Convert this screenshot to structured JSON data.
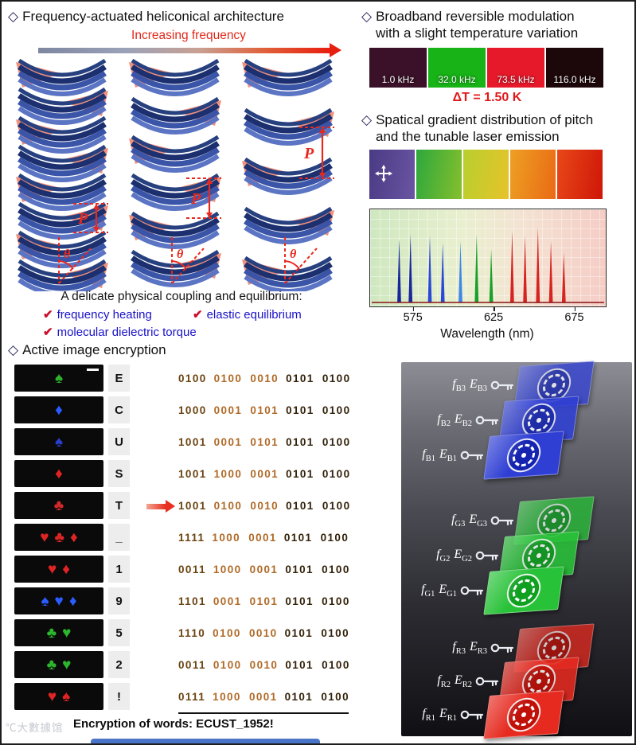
{
  "heliconical": {
    "bullet": "◇",
    "title": "Frequency-actuated heliconical architecture",
    "arrow_label": "Increasing frequency",
    "arrow_colors": [
      "#7e87a0",
      "#e81e10"
    ],
    "pitch_label": "P",
    "theta_label": "θ",
    "annotation_color": "#e8281e",
    "coupling_intro": "A delicate physical coupling and equilibrium:",
    "check_mark_color": "#c8102e",
    "check_label_color": "#1a12c8",
    "checks": [
      {
        "mark": "✔",
        "label": "frequency heating"
      },
      {
        "mark": "✔",
        "label": "elastic equilibrium"
      },
      {
        "mark": "✔",
        "label": "molecular dielectric torque"
      }
    ]
  },
  "broadband": {
    "bullet": "◇",
    "title_line1": "Broadband reversible modulation",
    "title_line2": "with a slight temperature variation",
    "swatches": [
      {
        "label": "1.0 kHz",
        "color": "#3a1128"
      },
      {
        "label": "32.0 kHz",
        "color": "#17b317"
      },
      {
        "label": "73.5 kHz",
        "color": "#e6192a"
      },
      {
        "label": "116.0 kHz",
        "color": "#1c070a"
      }
    ],
    "delta_t": "ΔT = 1.50 K",
    "delta_t_color": "#e0181c"
  },
  "gradient_section": {
    "bullet": "◇",
    "title_line1": "Spatical gradient distribution of pitch",
    "title_line2": "and the tunable laser emission",
    "panels": [
      {
        "from": "#4a3a84",
        "to": "#6a55a2"
      },
      {
        "from": "#2ca83c",
        "to": "#86bf2e"
      },
      {
        "from": "#b8cf2e",
        "to": "#e6c32a"
      },
      {
        "from": "#eda024",
        "to": "#ea6a14"
      },
      {
        "from": "#e84818",
        "to": "#cf1608"
      }
    ]
  },
  "chart_data": {
    "type": "line",
    "xlabel": "Wavelength (nm)",
    "xlim": [
      548,
      694
    ],
    "xticks": [
      575,
      625,
      675
    ],
    "grid": true,
    "baseline_color": "#8a1212",
    "peaks": [
      {
        "x": 566,
        "h": 0.74,
        "color": "#18289b"
      },
      {
        "x": 573,
        "h": 0.8,
        "color": "#18289b"
      },
      {
        "x": 585,
        "h": 0.78,
        "color": "#2a49d4"
      },
      {
        "x": 593,
        "h": 0.7,
        "color": "#2a49d4"
      },
      {
        "x": 604,
        "h": 0.72,
        "color": "#3f86e8"
      },
      {
        "x": 614,
        "h": 0.8,
        "color": "#17a02a"
      },
      {
        "x": 623,
        "h": 0.62,
        "color": "#17a02a"
      },
      {
        "x": 636,
        "h": 0.84,
        "color": "#d62420"
      },
      {
        "x": 644,
        "h": 0.78,
        "color": "#d62420"
      },
      {
        "x": 652,
        "h": 0.88,
        "color": "#d62420"
      },
      {
        "x": 660,
        "h": 0.72,
        "color": "#d62420"
      },
      {
        "x": 668,
        "h": 0.58,
        "color": "#d62420"
      }
    ]
  },
  "encryption": {
    "bullet": "◇",
    "title": "Active image encryption",
    "code_colors": {
      "part1": "#6b4412",
      "part2": "#b06a28",
      "part3": "#33220a"
    },
    "rows": [
      {
        "letter": "E",
        "suits": "♠",
        "suit_color": "#2db52d",
        "code1": "0100",
        "code2": "0100 0010",
        "code3": "0101 0100"
      },
      {
        "letter": "C",
        "suits": "♦",
        "suit_color": "#2a5cff",
        "code1": "1000",
        "code2": "0001 0101",
        "code3": "0101 0100"
      },
      {
        "letter": "U",
        "suits": "♠",
        "suit_color": "#2a3fd0",
        "code1": "1001",
        "code2": "0001 0101",
        "code3": "0101 0100"
      },
      {
        "letter": "S",
        "suits": "♦",
        "suit_color": "#e02424",
        "code1": "1001",
        "code2": "1000 0001",
        "code3": "0101 0100"
      },
      {
        "letter": "T",
        "suits": "♣",
        "suit_color": "#d42a2a",
        "code1": "1001",
        "code2": "0100 0010",
        "code3": "0101 0100"
      },
      {
        "letter": "_",
        "suits": "♥♣♦",
        "suit_color": "#e02424",
        "code1": "1111",
        "code2": "1000 0001",
        "code3": "0101 0100"
      },
      {
        "letter": "1",
        "suits": "♥♦",
        "suit_color": "#e02424",
        "code1": "0011",
        "code2": "1000 0001",
        "code3": "0101 0100"
      },
      {
        "letter": "9",
        "suits": "♠♥♦",
        "suit_color": "#2a5cff",
        "code1": "1101",
        "code2": "0001 0101",
        "code3": "0101 0100"
      },
      {
        "letter": "5",
        "suits": "♣♥",
        "suit_color": "#2db52d",
        "code1": "1110",
        "code2": "0100 0010",
        "code3": "0101 0100"
      },
      {
        "letter": "2",
        "suits": "♣♥",
        "suit_color": "#2db52d",
        "code1": "0011",
        "code2": "0100 0010",
        "code3": "0101 0100"
      },
      {
        "letter": "!",
        "suits": "♥♠",
        "suit_color": "#e02424",
        "code1": "0111",
        "code2": "1000 0001",
        "code3": "0101 0100"
      }
    ],
    "caption": "Encryption of  words: ECUST_1952!"
  },
  "films": {
    "f_label": "f",
    "e_label": "E",
    "groups": [
      {
        "name": "blue",
        "film_color": "#2f3fd4",
        "emblem_color": "#1424b0",
        "items": [
          {
            "fsub": "B3",
            "esub": "B3"
          },
          {
            "fsub": "B2",
            "esub": "B2"
          },
          {
            "fsub": "B1",
            "esub": "B1"
          }
        ]
      },
      {
        "name": "green",
        "film_color": "#28c238",
        "emblem_color": "#0fa020",
        "items": [
          {
            "fsub": "G3",
            "esub": "G3"
          },
          {
            "fsub": "G2",
            "esub": "G2"
          },
          {
            "fsub": "G1",
            "esub": "G1"
          }
        ]
      },
      {
        "name": "red",
        "film_color": "#e62a20",
        "emblem_color": "#c01008",
        "items": [
          {
            "fsub": "R3",
            "esub": "R3"
          },
          {
            "fsub": "R2",
            "esub": "R2"
          },
          {
            "fsub": "R1",
            "esub": "R1"
          }
        ]
      }
    ]
  },
  "watermark": "℃大數據馆"
}
